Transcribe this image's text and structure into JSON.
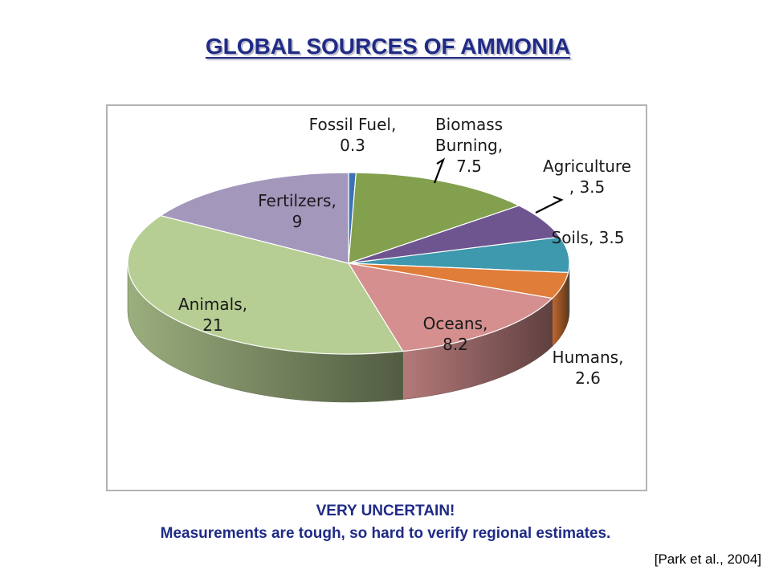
{
  "title": "GLOBAL SOURCES OF AMMONIA",
  "note_line1": "VERY UNCERTAIN!",
  "note_line2": "Measurements are tough, so hard to verify regional estimates.",
  "citation": "[Park et al., 2004]",
  "chart_data": {
    "type": "pie",
    "title": "",
    "style": "3d",
    "slices": [
      {
        "name": "Fossil Fuel",
        "value": 0.3,
        "label_lines": [
          "Fossil Fuel,",
          "0.3"
        ],
        "color": "#3d72b4"
      },
      {
        "name": "Biomass Burning",
        "value": 7.5,
        "label_lines": [
          "Biomass",
          "Burning,",
          "7.5"
        ],
        "color": "#82a04d"
      },
      {
        "name": "Agriculture",
        "value": 3.5,
        "label_lines": [
          "Agriculture",
          ", 3.5"
        ],
        "color": "#6e558f"
      },
      {
        "name": "Soils",
        "value": 3.5,
        "label_lines": [
          "Soils, 3.5"
        ],
        "color": "#3e98ae"
      },
      {
        "name": "Humans",
        "value": 2.6,
        "label_lines": [
          "Humans,",
          "2.6"
        ],
        "color": "#e07d38"
      },
      {
        "name": "Oceans",
        "value": 8.2,
        "label_lines": [
          "Oceans,",
          "8.2"
        ],
        "color": "#d48f8e"
      },
      {
        "name": "Animals",
        "value": 21,
        "label_lines": [
          "Animals,",
          "21"
        ],
        "color": "#b6cd93"
      },
      {
        "name": "Fertilzers",
        "value": 9,
        "label_lines": [
          "Fertilzers,",
          "9"
        ],
        "color": "#a497bc"
      }
    ]
  }
}
